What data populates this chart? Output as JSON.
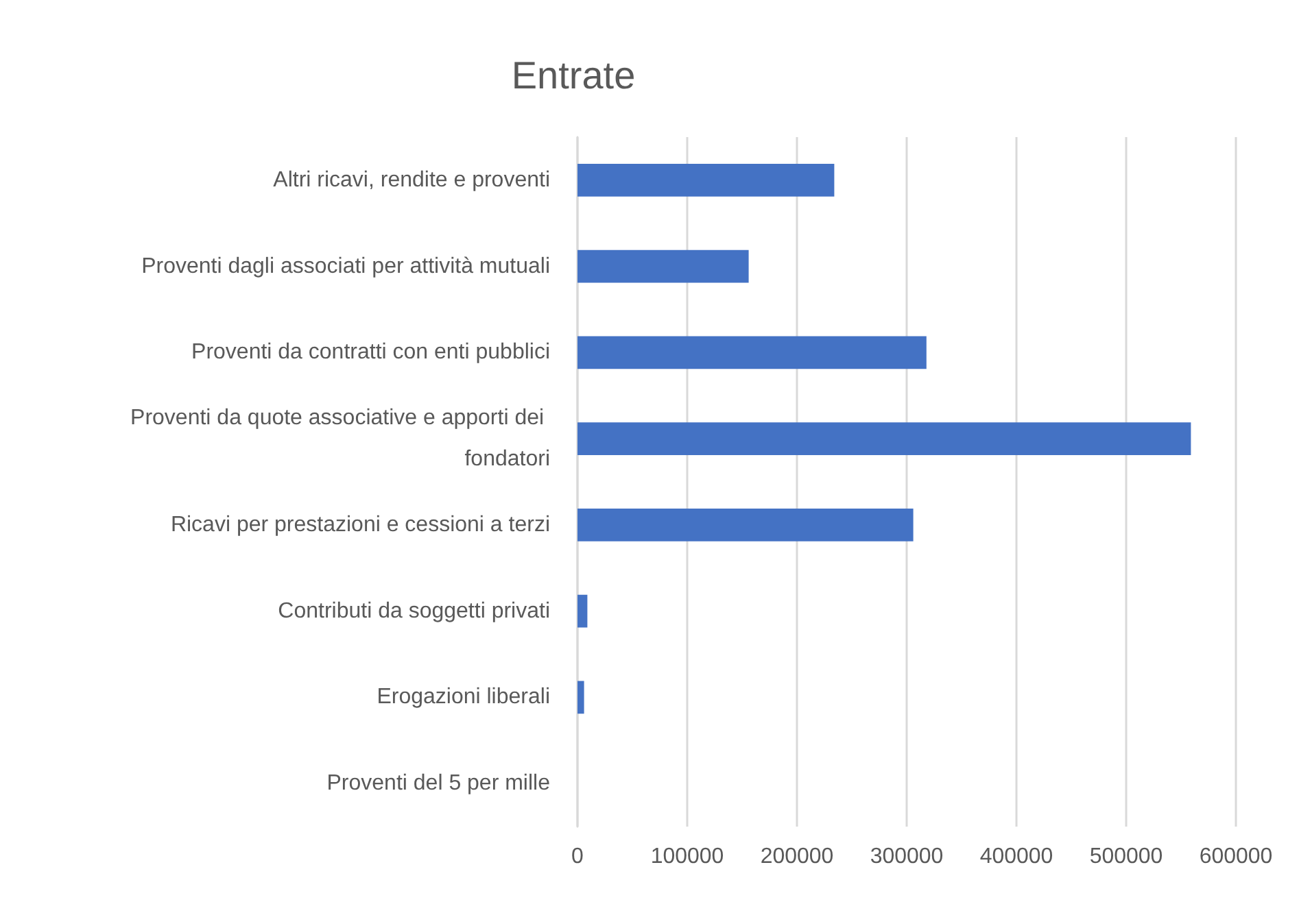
{
  "chart_data": {
    "type": "bar",
    "orientation": "horizontal",
    "title": "Entrate",
    "categories": [
      "Altri ricavi, rendite e proventi",
      "Proventi dagli associati per attività mutuali",
      "Proventi da contratti con enti pubblici",
      "Proventi da quote associative e apporti dei fondatori",
      "Ricavi per prestazioni e cessioni a terzi",
      "Contributi da soggetti privati",
      "Erogazioni liberali",
      "Proventi del 5 per mille"
    ],
    "values": [
      234000,
      156000,
      318000,
      559000,
      306000,
      9000,
      6000,
      0
    ],
    "color": "#4472c4",
    "xlim": [
      0,
      600000
    ],
    "xticks": [
      0,
      100000,
      200000,
      300000,
      400000,
      500000,
      600000
    ],
    "grid": "x"
  }
}
